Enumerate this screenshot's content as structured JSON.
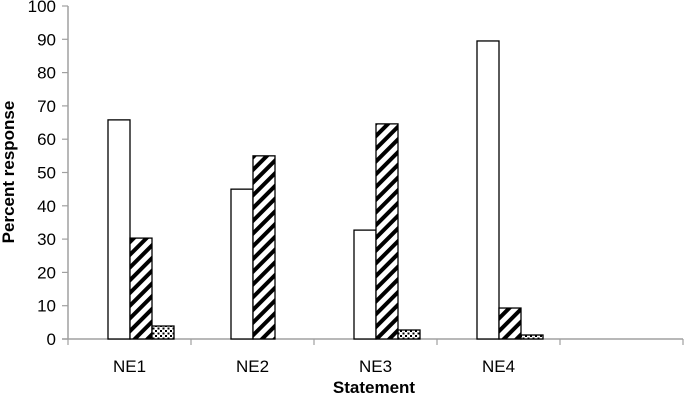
{
  "chart_data": {
    "type": "bar",
    "title": "",
    "xlabel": "Statement",
    "ylabel": "Percent response",
    "categories": [
      "NE1",
      "NE2",
      "NE3",
      "NE4",
      ""
    ],
    "series": [
      {
        "name": "Series 1 (open/white)",
        "pattern": "white",
        "values": [
          65.8,
          45.0,
          32.7,
          89.5,
          null
        ]
      },
      {
        "name": "Series 2 (diagonal hatch)",
        "pattern": "hatch",
        "values": [
          30.3,
          55.0,
          64.6,
          9.3,
          null
        ]
      },
      {
        "name": "Series 3 (dotted)",
        "pattern": "dots",
        "values": [
          3.9,
          0,
          2.7,
          1.2,
          null
        ]
      }
    ],
    "ylim": [
      0,
      100
    ],
    "yticks": [
      0,
      10,
      20,
      30,
      40,
      50,
      60,
      70,
      80,
      90,
      100
    ],
    "grid": false,
    "legend": "none"
  },
  "axes": {
    "x_title": "Statement",
    "y_title": "Percent response",
    "y_tick_labels": [
      "0",
      "10",
      "20",
      "30",
      "40",
      "50",
      "60",
      "70",
      "80",
      "90",
      "100"
    ],
    "x_tick_labels": [
      "NE1",
      "NE2",
      "NE3",
      "NE4"
    ]
  },
  "colors": {
    "axis": "#a0a0a0",
    "bar_stroke": "#000000",
    "bar_fill": "#ffffff"
  }
}
